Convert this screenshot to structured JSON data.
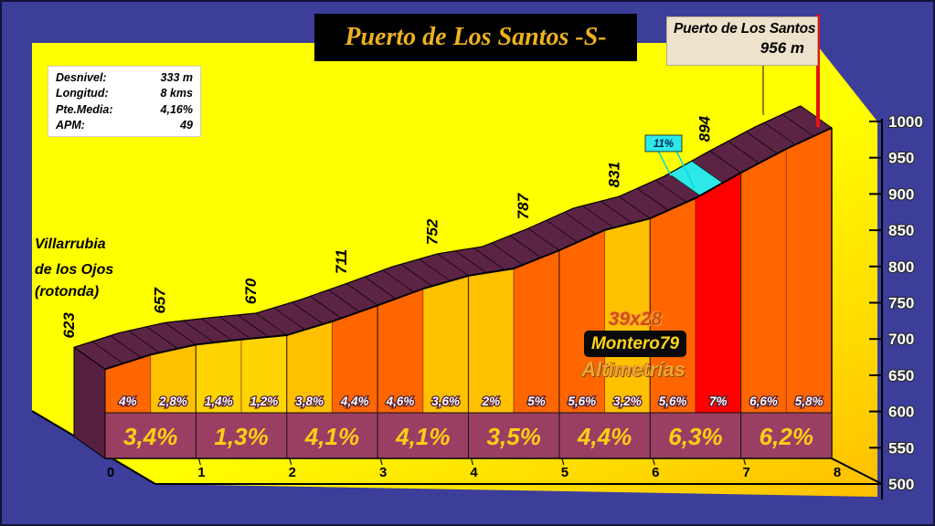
{
  "title": "Puerto de Los Santos -S-",
  "summit_box": {
    "name": "Puerto de Los Santos",
    "altitude": "956 m"
  },
  "stats_box": {
    "rows": [
      {
        "label": "Desnivel:",
        "value": "333 m"
      },
      {
        "label": "Longitud:",
        "value": "8 kms"
      },
      {
        "label": "Pte.Media:",
        "value": "4,16%"
      },
      {
        "label": "APM:",
        "value": "49"
      }
    ]
  },
  "start_label": {
    "lines": [
      "Villarrubia",
      "de los Ojos",
      "(rotonda)"
    ]
  },
  "watermark": {
    "size": "39x28",
    "author": "Montero79",
    "brand": "Altimetrías"
  },
  "colors": {
    "background_blue": "#3c3e9a",
    "plot_yellow_top": "#ffff00",
    "plot_yellow_bottom": "#ffbf00",
    "road_ribbon": "#5c2444",
    "side_face": "#572040",
    "km_band": "#9a3f63",
    "km_band_text": "#ffd014",
    "title_gold": "#edb21e",
    "flag_pole_red": "#e81111",
    "steep_marker_cyan": "#2ee8e8",
    "grade_yellow": "#ffd400",
    "grade_gold": "#ffc000",
    "grade_orange": "#ff6600",
    "grade_red": "#ff0000"
  },
  "chart_data": {
    "type": "area",
    "title": "Puerto de Los Santos -S-",
    "x_unit": "km",
    "y_unit": "m",
    "xlim": [
      0,
      8
    ],
    "ylim": [
      500,
      1000
    ],
    "y_ticks": [
      500,
      550,
      600,
      650,
      700,
      750,
      800,
      850,
      900,
      950,
      1000
    ],
    "x_ticks": [
      "0",
      "1",
      "2",
      "3",
      "4",
      "5",
      "6",
      "7",
      "8"
    ],
    "profile_km": [
      0,
      0.5,
      1,
      1.5,
      2,
      2.5,
      3,
      3.5,
      4,
      4.5,
      5,
      5.5,
      6,
      6.5,
      7,
      7.5,
      8
    ],
    "profile_elevation_m": [
      623,
      643,
      657,
      664,
      670,
      689,
      711,
      734,
      752,
      762,
      787,
      815,
      831,
      859,
      894,
      927,
      956
    ],
    "km_elevation_labels": [
      "623",
      "657",
      "670",
      "711",
      "752",
      "787",
      "831",
      "894"
    ],
    "summit_elevation_m": 956,
    "total_climb_m": 333,
    "length_km": 8,
    "avg_gradient_pct": 4.16,
    "half_km_segments": [
      {
        "label": "4%",
        "grade_pct": 4.0,
        "color": "#ff6600"
      },
      {
        "label": "2,8%",
        "grade_pct": 2.8,
        "color": "#ffc000"
      },
      {
        "label": "1,4%",
        "grade_pct": 1.4,
        "color": "#ffd400"
      },
      {
        "label": "1,2%",
        "grade_pct": 1.2,
        "color": "#ffd400"
      },
      {
        "label": "3,8%",
        "grade_pct": 3.8,
        "color": "#ffc000"
      },
      {
        "label": "4,4%",
        "grade_pct": 4.4,
        "color": "#ff6600"
      },
      {
        "label": "4,6%",
        "grade_pct": 4.6,
        "color": "#ff6600"
      },
      {
        "label": "3,6%",
        "grade_pct": 3.6,
        "color": "#ffc000"
      },
      {
        "label": "2%",
        "grade_pct": 2.0,
        "color": "#ffc000"
      },
      {
        "label": "5%",
        "grade_pct": 5.0,
        "color": "#ff6600"
      },
      {
        "label": "5,6%",
        "grade_pct": 5.6,
        "color": "#ff6600"
      },
      {
        "label": "3,2%",
        "grade_pct": 3.2,
        "color": "#ffc000"
      },
      {
        "label": "5,6%",
        "grade_pct": 5.6,
        "color": "#ff6600"
      },
      {
        "label": "7%",
        "grade_pct": 7.0,
        "color": "#ff0000"
      },
      {
        "label": "6,6%",
        "grade_pct": 6.6,
        "color": "#ff6600"
      },
      {
        "label": "5,8%",
        "grade_pct": 5.8,
        "color": "#ff6600"
      }
    ],
    "km_gradient_labels": [
      "3,4%",
      "1,3%",
      "4,1%",
      "4,1%",
      "3,5%",
      "4,4%",
      "6,3%",
      "6,2%"
    ],
    "steep_section": {
      "label": "11%",
      "from_km": 6.55,
      "to_km": 6.8,
      "color": "#2ee8e8"
    }
  }
}
